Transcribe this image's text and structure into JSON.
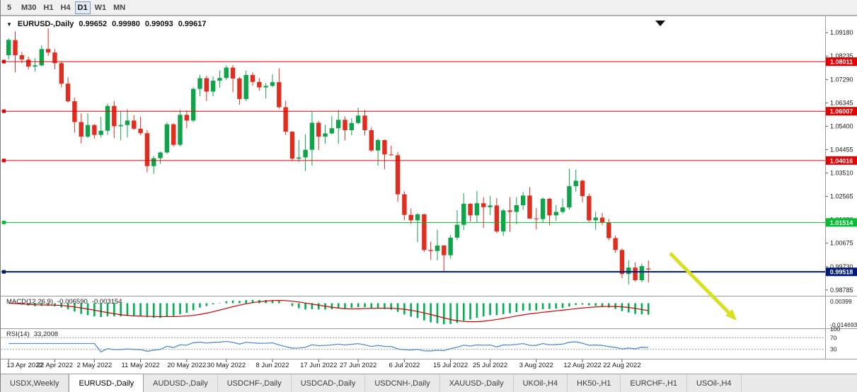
{
  "app": {
    "name": "MetaTrader chart window"
  },
  "toolbar": {
    "timeframe_buttons": [
      "5",
      "M30",
      "H1",
      "H4",
      "D1",
      "W1",
      "MN"
    ],
    "active_timeframe": "D1"
  },
  "chart": {
    "title": {
      "symbol_period": "EURUSD-,Daily",
      "open": "0.99652",
      "high": "0.99980",
      "low": "0.99093",
      "close": "0.99617"
    },
    "colors": {
      "bull": "#0fa44a",
      "bear": "#df2e1f",
      "background": "#ffffff",
      "pane_border": "#9a9a9a",
      "axis_text": "#1a1a1a"
    }
  },
  "chart_data": {
    "type": "candlestick",
    "symbol": "EURUSD-",
    "period": "Daily",
    "ohlc_legend": [
      "open",
      "high",
      "low",
      "close"
    ],
    "ohlc": [
      [
        1.0827,
        1.0895,
        1.0809,
        1.0889
      ],
      [
        1.0888,
        1.0923,
        1.0758,
        1.0827
      ],
      [
        1.0827,
        1.084,
        1.0795,
        1.081
      ],
      [
        1.0809,
        1.0822,
        1.077,
        1.0781
      ],
      [
        1.0781,
        1.0815,
        1.0761,
        1.0786
      ],
      [
        1.0786,
        1.0867,
        1.0782,
        1.0852
      ],
      [
        1.0852,
        1.0936,
        1.0824,
        1.0838
      ],
      [
        1.0838,
        1.0852,
        1.077,
        1.0795
      ],
      [
        1.0795,
        1.08,
        1.0697,
        1.0712
      ],
      [
        1.0712,
        1.0738,
        1.0635,
        1.0641
      ],
      [
        1.0641,
        1.0655,
        1.0514,
        1.0557
      ],
      [
        1.0557,
        1.0592,
        1.0471,
        1.0498
      ],
      [
        1.0498,
        1.0592,
        1.0492,
        1.0545
      ],
      [
        1.0545,
        1.0549,
        1.049,
        1.0505
      ],
      [
        1.0505,
        1.0578,
        1.0495,
        1.0522
      ],
      [
        1.0522,
        1.0632,
        1.0505,
        1.0622
      ],
      [
        1.0622,
        1.0642,
        1.0492,
        1.054
      ],
      [
        1.054,
        1.0599,
        1.0483,
        1.0545
      ],
      [
        1.0545,
        1.0609,
        1.0495,
        1.0563
      ],
      [
        1.0563,
        1.0585,
        1.0525,
        1.053
      ],
      [
        1.053,
        1.0579,
        1.0504,
        1.0512
      ],
      [
        1.0512,
        1.0525,
        1.0354,
        1.0379
      ],
      [
        1.0379,
        1.042,
        1.0348,
        1.0411
      ],
      [
        1.0411,
        1.0438,
        1.0388,
        1.0434
      ],
      [
        1.0434,
        1.0556,
        1.0428,
        1.0548
      ],
      [
        1.0548,
        1.0552,
        1.0458,
        1.0465
      ],
      [
        1.0465,
        1.0607,
        1.0459,
        1.0586
      ],
      [
        1.0586,
        1.0604,
        1.0532,
        1.0563
      ],
      [
        1.0563,
        1.0697,
        1.0556,
        1.0691
      ],
      [
        1.0691,
        1.0748,
        1.0661,
        1.0734
      ],
      [
        1.0734,
        1.0744,
        1.0642,
        1.068
      ],
      [
        1.068,
        1.0741,
        1.0661,
        1.0724
      ],
      [
        1.0724,
        1.0765,
        1.0696,
        1.0735
      ],
      [
        1.0735,
        1.0786,
        1.0727,
        1.0777
      ],
      [
        1.0777,
        1.0787,
        1.0678,
        1.0733
      ],
      [
        1.0733,
        1.0739,
        1.0627,
        1.065
      ],
      [
        1.065,
        1.0764,
        1.0641,
        1.0747
      ],
      [
        1.0747,
        1.0758,
        1.0704,
        1.0719
      ],
      [
        1.0719,
        1.0735,
        1.0683,
        1.0697
      ],
      [
        1.0697,
        1.0715,
        1.0652,
        1.0703
      ],
      [
        1.0703,
        1.0749,
        1.0698,
        1.0718
      ],
      [
        1.0718,
        1.0774,
        1.0611,
        1.0617
      ],
      [
        1.0617,
        1.0643,
        1.0505,
        1.0518
      ],
      [
        1.0518,
        1.052,
        1.0399,
        1.0409
      ],
      [
        1.0409,
        1.0485,
        1.0396,
        1.0414
      ],
      [
        1.0414,
        1.0508,
        1.0359,
        1.0445
      ],
      [
        1.0445,
        1.0601,
        1.0381,
        1.0554
      ],
      [
        1.0554,
        1.0561,
        1.0444,
        1.0498
      ],
      [
        1.0498,
        1.0546,
        1.0469,
        1.0511
      ],
      [
        1.0511,
        1.0582,
        1.0508,
        1.0532
      ],
      [
        1.0532,
        1.0606,
        1.0469,
        1.0566
      ],
      [
        1.0566,
        1.058,
        1.0483,
        1.0524
      ],
      [
        1.0524,
        1.0572,
        1.0503,
        1.0553
      ],
      [
        1.0553,
        1.0615,
        1.0548,
        1.0583
      ],
      [
        1.0583,
        1.0606,
        1.0503,
        1.0524
      ],
      [
        1.0524,
        1.0536,
        1.0436,
        1.0442
      ],
      [
        1.0442,
        1.049,
        1.0381,
        1.0484
      ],
      [
        1.0484,
        1.0486,
        1.0366,
        1.0426
      ],
      [
        1.0426,
        1.0461,
        1.0421,
        1.0423
      ],
      [
        1.0423,
        1.0436,
        1.0235,
        1.0265
      ],
      [
        1.0265,
        1.0277,
        1.0161,
        1.0182
      ],
      [
        1.0182,
        1.0208,
        1.0145,
        1.016
      ],
      [
        1.016,
        1.019,
        1.0072,
        1.0184
      ],
      [
        1.0184,
        1.0187,
        1.0032,
        1.004
      ],
      [
        1.004,
        1.0074,
        1.0,
        1.0036
      ],
      [
        1.0036,
        1.0122,
        0.9998,
        1.0058
      ],
      [
        1.0058,
        1.006,
        0.9952,
        1.0019
      ],
      [
        1.0019,
        1.0101,
        1.0006,
        1.009
      ],
      [
        1.009,
        1.0201,
        1.008,
        1.0142
      ],
      [
        1.0142,
        1.0269,
        1.0121,
        1.0227
      ],
      [
        1.0227,
        1.0229,
        1.0155,
        1.018
      ],
      [
        1.018,
        1.0279,
        1.0151,
        1.0229
      ],
      [
        1.0229,
        1.0254,
        1.0129,
        1.0213
      ],
      [
        1.0213,
        1.0258,
        1.018,
        1.022
      ],
      [
        1.022,
        1.025,
        1.0108,
        1.0115
      ],
      [
        1.0115,
        1.0206,
        1.0097,
        1.02
      ],
      [
        1.02,
        1.0254,
        1.0113,
        1.0194
      ],
      [
        1.0194,
        1.0254,
        1.0144,
        1.0221
      ],
      [
        1.0221,
        1.0274,
        1.0202,
        1.026
      ],
      [
        1.026,
        1.0294,
        1.0166,
        1.0167
      ],
      [
        1.0167,
        1.021,
        1.0123,
        1.0165
      ],
      [
        1.0165,
        1.0253,
        1.0151,
        1.0247
      ],
      [
        1.0247,
        1.0251,
        1.0141,
        1.018
      ],
      [
        1.018,
        1.0222,
        1.0158,
        1.0194
      ],
      [
        1.0194,
        1.0248,
        1.0187,
        1.0212
      ],
      [
        1.0212,
        1.0369,
        1.0203,
        1.0298
      ],
      [
        1.0298,
        1.0365,
        1.0276,
        1.032
      ],
      [
        1.032,
        1.0325,
        1.0233,
        1.0258
      ],
      [
        1.0258,
        1.0268,
        1.0154,
        1.016
      ],
      [
        1.016,
        1.0195,
        1.0122,
        1.0171
      ],
      [
        1.0171,
        1.019,
        1.0141,
        1.015
      ],
      [
        1.015,
        1.0166,
        1.0079,
        1.0088
      ],
      [
        1.0088,
        1.0098,
        1.0029,
        1.004
      ],
      [
        1.004,
        1.0046,
        0.9926,
        0.9943
      ],
      [
        0.9943,
        0.9999,
        0.9901,
        0.9969
      ],
      [
        0.9969,
        0.999,
        0.9913,
        0.9918
      ],
      [
        0.9918,
        0.9985,
        0.991,
        0.9975
      ],
      [
        0.99652,
        0.9998,
        0.99093,
        0.99617
      ]
    ],
    "x_labels": [
      {
        "index": 0,
        "label": "13 Apr 2022"
      },
      {
        "index": 7,
        "label": "22 Apr 2022"
      },
      {
        "index": 13,
        "label": "2 May 2022"
      },
      {
        "index": 20,
        "label": "11 May 2022"
      },
      {
        "index": 27,
        "label": "20 May 2022"
      },
      {
        "index": 33,
        "label": "30 May 2022"
      },
      {
        "index": 40,
        "label": "8 Jun 2022"
      },
      {
        "index": 47,
        "label": "17 Jun 2022"
      },
      {
        "index": 53,
        "label": "27 Jun 2022"
      },
      {
        "index": 60,
        "label": "6 Jul 2022"
      },
      {
        "index": 67,
        "label": "15 Jul 2022"
      },
      {
        "index": 73,
        "label": "25 Jul 2022"
      },
      {
        "index": 80,
        "label": "3 Aug 2022"
      },
      {
        "index": 87,
        "label": "12 Aug 2022"
      },
      {
        "index": 93,
        "label": "22 Aug 2022"
      }
    ],
    "y_ticks": [
      "1.09180",
      "1.08235",
      "1.07290",
      "1.06345",
      "1.05400",
      "1.04455",
      "1.03510",
      "1.02565",
      "1.01620",
      "1.00675",
      "0.99730",
      "0.98785"
    ],
    "y_range": {
      "top": 1.097,
      "bottom": 0.9858
    },
    "horizontal_levels": [
      {
        "price": 1.08011,
        "label": "1.08011",
        "color": "#e60000",
        "thickness": 1
      },
      {
        "price": 1.06007,
        "label": "1.06007",
        "color": "#e60000",
        "thickness": 1
      },
      {
        "price": 1.04016,
        "label": "1.04016",
        "color": "#e60000",
        "thickness": 1
      },
      {
        "price": 1.01514,
        "label": "1.01514",
        "color": "#00bf2f",
        "thickness": 1
      },
      {
        "price": 0.99518,
        "label": "0.99518",
        "color": "#001a7a",
        "thickness": 2
      }
    ],
    "indicators": {
      "macd": {
        "label": "MACD(12,26,9)",
        "main_value": "-0.006590",
        "signal_value": "-0.003154",
        "params": [
          12,
          26,
          9
        ],
        "axis_labels": [
          "0.00399",
          "-0.014693"
        ],
        "histogram_color": "#00b050",
        "signal_color": "#cc0000"
      },
      "rsi": {
        "label": "RSI(14)",
        "value": "33,2008",
        "period": 14,
        "axis_labels": [
          "100",
          "70",
          "30"
        ],
        "level_lines": [
          70,
          30
        ],
        "line_color": "#4f8fd0"
      }
    },
    "annotation": {
      "type": "arrow",
      "color": "#d9e021",
      "direction": "down-right",
      "location": "below last candles, pointing into indicator pane"
    }
  },
  "bottom_tabs": {
    "tabs": [
      "USDX,Weekly",
      "EURUSD-,Daily",
      "AUDUSD-,Daily",
      "USDCHF-,Daily",
      "USDCAD-,Daily",
      "USDCNH-,Daily",
      "XAUUSD-,Daily",
      "UKOil-,H4",
      "HK50-,H1",
      "EURCHF-,H1",
      "USOil-,H4"
    ],
    "active_tab": "EURUSD-,Daily"
  }
}
